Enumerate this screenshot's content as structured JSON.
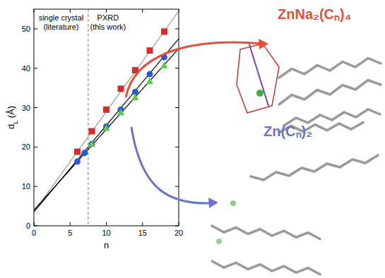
{
  "chart_data": {
    "type": "scatter",
    "x_label": "n",
    "y_label": "dL (Å)",
    "xlim": [
      0,
      20
    ],
    "ylim": [
      0,
      55
    ],
    "xticks": [
      0,
      5,
      10,
      15,
      20
    ],
    "yticks": [
      0,
      10,
      20,
      30,
      40,
      50
    ],
    "grid": false,
    "regions": [
      {
        "lines": [
          "single crystal",
          "(literature)"
        ]
      },
      {
        "lines": [
          "PXRD",
          "(this work)"
        ]
      }
    ],
    "vlines": [
      {
        "x": 7.5,
        "line_style": "dashed"
      }
    ],
    "annotations": [
      {
        "text": "ZnNa₂(Cₙ)₄",
        "color": "#e2503c"
      },
      {
        "text": "Zn(Cₙ)₂",
        "color": "#6b73c8"
      }
    ],
    "series": [
      {
        "type": "scatter",
        "marker": "square",
        "color": "#d92b2b",
        "x": [
          6,
          8,
          10,
          12,
          14,
          16,
          18
        ],
        "values": [
          18.8,
          24,
          29.5,
          34.8,
          39.5,
          44.5,
          49.3
        ]
      },
      {
        "type": "scatter",
        "marker": "circle",
        "color": "#2a5cc8",
        "x": [
          6,
          7,
          8,
          10,
          12,
          14,
          16,
          18
        ],
        "values": [
          16.3,
          18.5,
          20.8,
          25.2,
          29.5,
          34,
          38.5,
          42.8
        ]
      },
      {
        "type": "scatter",
        "marker": "triangle",
        "color": "#5ec84c",
        "x": [
          8,
          10,
          12,
          14,
          16,
          18
        ],
        "values": [
          20.8,
          24.8,
          28.8,
          32.6,
          36.7,
          40.7
        ]
      },
      {
        "type": "line",
        "line_style": "solid",
        "color": "#999999",
        "x": [
          0,
          20
        ],
        "values": [
          3.5,
          54.5
        ]
      },
      {
        "type": "line",
        "line_style": "solid",
        "color": "#000000",
        "x": [
          0,
          20
        ],
        "values": [
          3.5,
          47.5
        ]
      },
      {
        "type": "line",
        "line_style": "solid",
        "color": "#000000",
        "x": [
          0,
          20
        ],
        "values": [
          4.0,
          45.0
        ]
      }
    ]
  }
}
